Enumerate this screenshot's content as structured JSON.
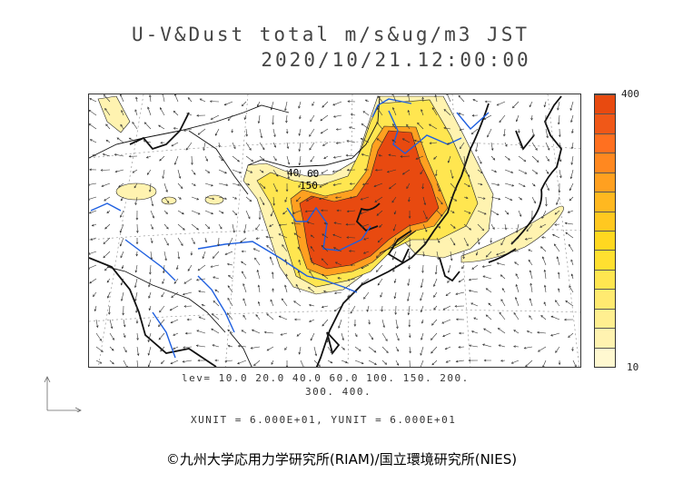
{
  "title": {
    "line1": "U-V&Dust total m/s&ug/m3 JST",
    "line2": "2020/10/21.12:00:00"
  },
  "colorbar": {
    "max_label": "400",
    "min_label": "10",
    "colors": [
      "#fff8d0",
      "#fff3b0",
      "#ffef90",
      "#ffea70",
      "#ffe650",
      "#ffe030",
      "#ffd820",
      "#ffc820",
      "#ffb820",
      "#ffa020",
      "#ff8820",
      "#ff7020",
      "#f05818",
      "#e84a10"
    ]
  },
  "levels_line1": "lev= 10.0 20.0 40.0 60.0 100. 150. 200.",
  "levels_line2": "300. 400.",
  "contour_labels": [
    "40",
    "60",
    "150"
  ],
  "units_line": "XUNIT = 6.000E+01, YUNIT = 6.000E+01",
  "copyright": "©九州大学応用力学研究所(RIAM)/国立環境研究所(NIES)",
  "colors": {
    "coast": "#111111",
    "river": "#1e5fe0",
    "dust_heavy": "#e84a10",
    "dust_light": "#fff3b0"
  }
}
